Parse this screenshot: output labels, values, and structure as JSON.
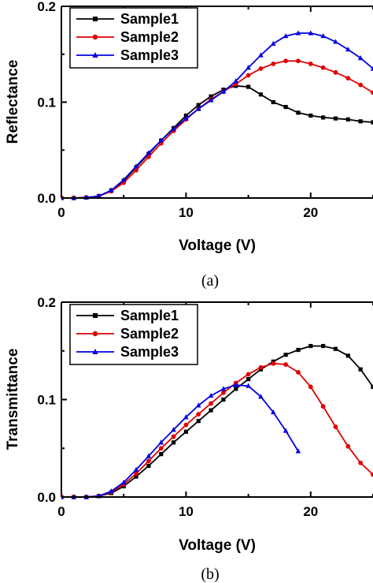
{
  "chart_data": [
    {
      "type": "line",
      "panel_label": "(a)",
      "xlabel": "Voltage (V)",
      "ylabel": "Reflectance",
      "xlim": [
        0,
        25
      ],
      "ylim": [
        0,
        0.2
      ],
      "x_ticks": [
        0,
        10,
        20
      ],
      "y_ticks": [
        0.0,
        0.1,
        0.2
      ],
      "y_tick_labels": [
        "0.0",
        "0.1",
        "0.2"
      ],
      "legend_position": "top-left",
      "series": [
        {
          "name": "Sample1",
          "color": "#000000",
          "marker": "square",
          "x": [
            0,
            1,
            2,
            3,
            4,
            5,
            6,
            7,
            8,
            9,
            10,
            11,
            12,
            13,
            14,
            15,
            16,
            17,
            18,
            19,
            20,
            21,
            22,
            23,
            24,
            25
          ],
          "y": [
            0,
            0,
            0.0005,
            0.002,
            0.008,
            0.018,
            0.032,
            0.046,
            0.06,
            0.073,
            0.086,
            0.097,
            0.106,
            0.113,
            0.117,
            0.116,
            0.108,
            0.1,
            0.095,
            0.089,
            0.086,
            0.084,
            0.083,
            0.082,
            0.08,
            0.079
          ]
        },
        {
          "name": "Sample2",
          "color": "#e00000",
          "marker": "circle",
          "x": [
            0,
            1,
            2,
            3,
            4,
            5,
            6,
            7,
            8,
            9,
            10,
            11,
            12,
            13,
            14,
            15,
            16,
            17,
            18,
            19,
            20,
            21,
            22,
            23,
            24,
            25
          ],
          "y": [
            0,
            0,
            0.0005,
            0.002,
            0.007,
            0.016,
            0.029,
            0.043,
            0.057,
            0.07,
            0.082,
            0.093,
            0.103,
            0.111,
            0.119,
            0.128,
            0.135,
            0.14,
            0.143,
            0.143,
            0.14,
            0.136,
            0.131,
            0.125,
            0.118,
            0.11
          ]
        },
        {
          "name": "Sample3",
          "color": "#0000e0",
          "marker": "triangle",
          "x": [
            0,
            1,
            2,
            3,
            4,
            5,
            6,
            7,
            8,
            9,
            10,
            11,
            12,
            13,
            14,
            15,
            16,
            17,
            18,
            19,
            20,
            21,
            22,
            23,
            24,
            25
          ],
          "y": [
            0,
            0,
            0.0005,
            0.002,
            0.008,
            0.019,
            0.033,
            0.047,
            0.06,
            0.072,
            0.083,
            0.093,
            0.102,
            0.111,
            0.122,
            0.136,
            0.149,
            0.161,
            0.169,
            0.172,
            0.172,
            0.169,
            0.163,
            0.155,
            0.146,
            0.135
          ]
        }
      ]
    },
    {
      "type": "line",
      "panel_label": "(b)",
      "xlabel": "Voltage (V)",
      "ylabel": "Transmittance",
      "xlim": [
        0,
        25
      ],
      "ylim": [
        0,
        0.2
      ],
      "x_ticks": [
        0,
        10,
        20
      ],
      "y_ticks": [
        0.0,
        0.1,
        0.2
      ],
      "y_tick_labels": [
        "0.0",
        "0.1",
        "0.2"
      ],
      "legend_position": "top-left",
      "series": [
        {
          "name": "Sample1",
          "color": "#000000",
          "marker": "square",
          "x": [
            0,
            1,
            2,
            3,
            4,
            5,
            6,
            7,
            8,
            9,
            10,
            11,
            12,
            13,
            14,
            15,
            16,
            17,
            18,
            19,
            20,
            21,
            22,
            23,
            24,
            25
          ],
          "y": [
            0,
            0,
            0,
            0.001,
            0.004,
            0.011,
            0.021,
            0.032,
            0.044,
            0.056,
            0.067,
            0.078,
            0.089,
            0.1,
            0.111,
            0.121,
            0.131,
            0.139,
            0.146,
            0.151,
            0.155,
            0.155,
            0.152,
            0.145,
            0.131,
            0.113
          ]
        },
        {
          "name": "Sample2",
          "color": "#e00000",
          "marker": "circle",
          "x": [
            0,
            1,
            2,
            3,
            4,
            5,
            6,
            7,
            8,
            9,
            10,
            11,
            12,
            13,
            14,
            15,
            16,
            17,
            18,
            19,
            20,
            21,
            22,
            23,
            24,
            25
          ],
          "y": [
            0,
            0,
            0,
            0.001,
            0.005,
            0.013,
            0.024,
            0.037,
            0.05,
            0.062,
            0.074,
            0.085,
            0.096,
            0.107,
            0.117,
            0.126,
            0.133,
            0.137,
            0.136,
            0.128,
            0.113,
            0.093,
            0.072,
            0.052,
            0.035,
            0.023
          ]
        },
        {
          "name": "Sample3",
          "color": "#0000e0",
          "marker": "triangle",
          "x": [
            0,
            1,
            2,
            3,
            4,
            5,
            6,
            7,
            8,
            9,
            10,
            11,
            12,
            13,
            14,
            15,
            16,
            17,
            18,
            19
          ],
          "y": [
            0,
            0,
            0,
            0.001,
            0.006,
            0.015,
            0.028,
            0.042,
            0.056,
            0.069,
            0.082,
            0.094,
            0.104,
            0.111,
            0.115,
            0.114,
            0.103,
            0.087,
            0.068,
            0.047
          ]
        }
      ]
    }
  ]
}
